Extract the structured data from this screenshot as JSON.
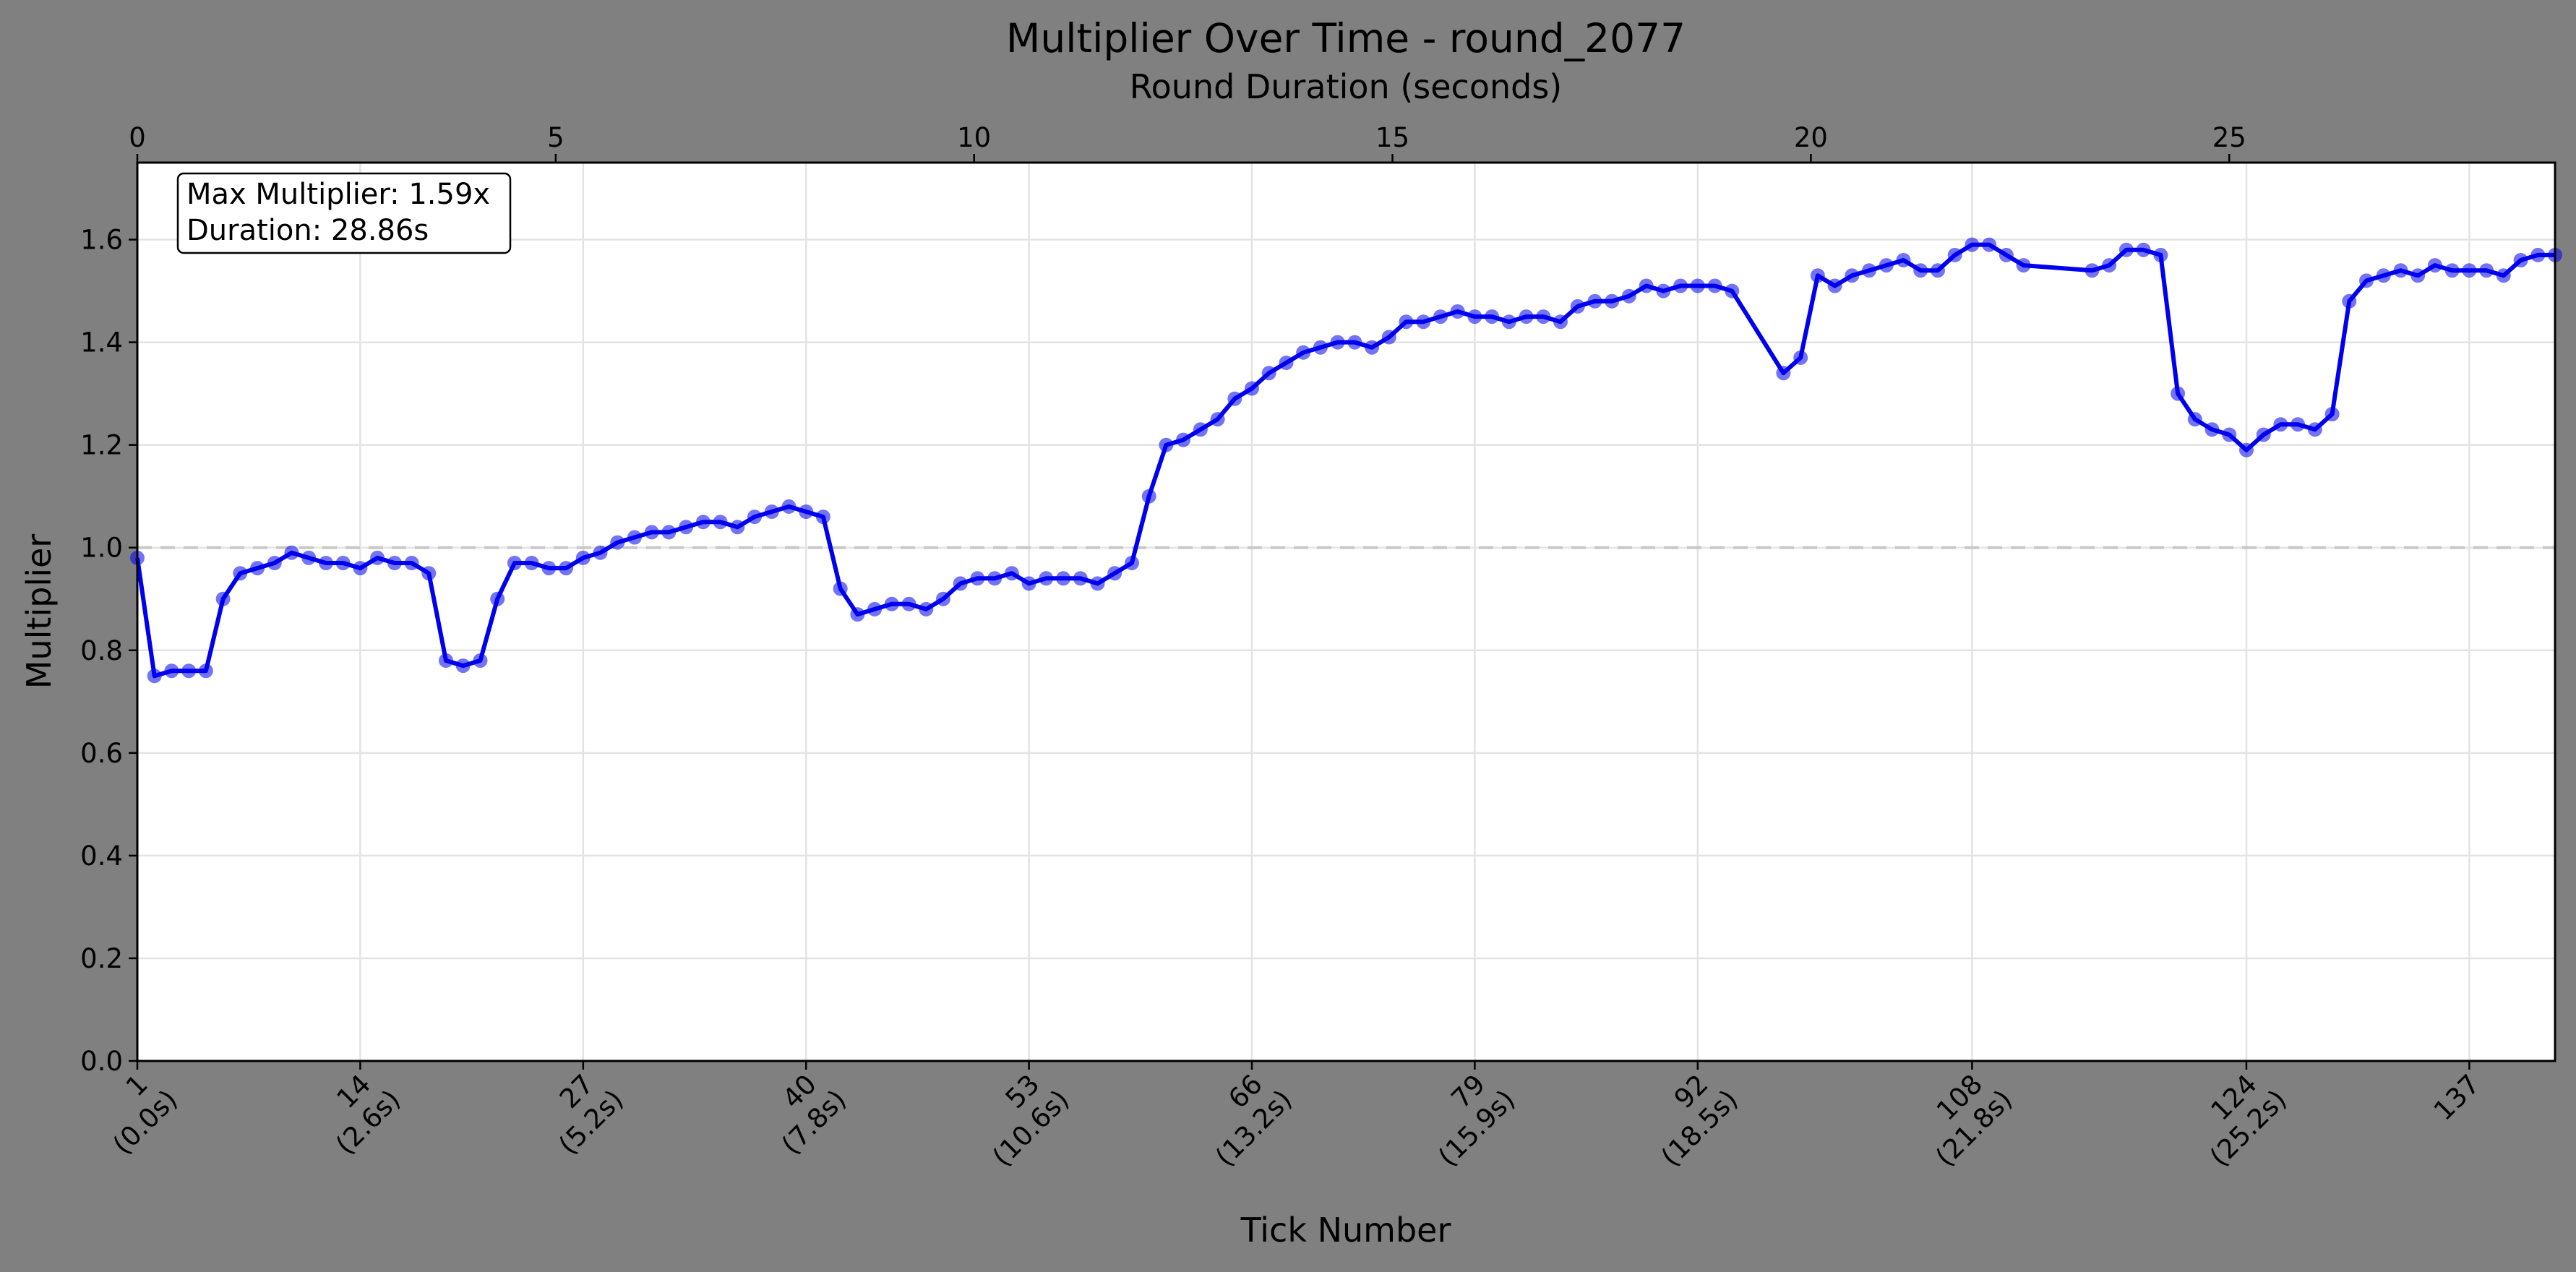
{
  "chart_data": {
    "type": "line",
    "title": "Multiplier Over Time - round_2077",
    "xlabel": "Tick Number",
    "ylabel": "Multiplier",
    "top_xlabel": "Round Duration (seconds)",
    "grid": true,
    "xlim": [
      1,
      142
    ],
    "ylim": [
      0,
      1.75
    ],
    "y_ticks": [
      "0.0",
      "0.2",
      "0.4",
      "0.6",
      "0.8",
      "1.0",
      "1.2",
      "1.4",
      "1.6"
    ],
    "y_tick_values": [
      0,
      0.2,
      0.4,
      0.6,
      0.8,
      1.0,
      1.2,
      1.4,
      1.6
    ],
    "x_ticks": [
      {
        "tick": 1,
        "label": "1",
        "sub": "(0.0s)"
      },
      {
        "tick": 14,
        "label": "14",
        "sub": "(2.6s)"
      },
      {
        "tick": 27,
        "label": "27",
        "sub": "(5.2s)"
      },
      {
        "tick": 40,
        "label": "40",
        "sub": "(7.8s)"
      },
      {
        "tick": 53,
        "label": "53",
        "sub": "(10.6s)"
      },
      {
        "tick": 66,
        "label": "66",
        "sub": "(13.2s)"
      },
      {
        "tick": 79,
        "label": "79",
        "sub": "(15.9s)"
      },
      {
        "tick": 92,
        "label": "92",
        "sub": "(18.5s)"
      },
      {
        "tick": 108,
        "label": "108",
        "sub": "(21.8s)"
      },
      {
        "tick": 124,
        "label": "124",
        "sub": "(25.2s)"
      },
      {
        "tick": 137,
        "label": "137",
        "sub": ""
      }
    ],
    "top_axis": {
      "ticks": [
        "0",
        "5",
        "10",
        "15",
        "20",
        "25"
      ],
      "tick_ticks": [
        1,
        25.4,
        49.8,
        74.2,
        98.6,
        123.0
      ]
    },
    "reference_line": {
      "y": 1.0,
      "style": "dashed",
      "color": "#c8c8c8"
    },
    "annotation": {
      "lines": [
        "Max Multiplier: 1.59x",
        "Duration: 28.86s"
      ],
      "placement": "top-left"
    },
    "series": [
      {
        "color": "#0000ee",
        "x": [
          1,
          2,
          3,
          4,
          5,
          6,
          7,
          8,
          9,
          10,
          11,
          12,
          13,
          14,
          15,
          16,
          17,
          18,
          19,
          20,
          21,
          22,
          23,
          24,
          25,
          26,
          27,
          28,
          29,
          30,
          31,
          32,
          33,
          34,
          35,
          36,
          37,
          38,
          39,
          40,
          41,
          42,
          43,
          44,
          45,
          46,
          47,
          48,
          49,
          50,
          51,
          52,
          53,
          54,
          55,
          56,
          57,
          58,
          59,
          60,
          61,
          62,
          63,
          64,
          65,
          66,
          67,
          68,
          69,
          70,
          71,
          72,
          73,
          74,
          75,
          76,
          77,
          78,
          79,
          80,
          81,
          82,
          83,
          84,
          85,
          86,
          87,
          88,
          89,
          90,
          91,
          92,
          93,
          94,
          97,
          98,
          99,
          100,
          101,
          102,
          103,
          104,
          105,
          106,
          107,
          108,
          109,
          110,
          111,
          115,
          116,
          117,
          118,
          119,
          120,
          121,
          122,
          123,
          124,
          125,
          126,
          127,
          128,
          129,
          130,
          131,
          132,
          133,
          134,
          135,
          136,
          137,
          138,
          139,
          140,
          141,
          142
        ],
        "y": [
          0.98,
          0.75,
          0.76,
          0.76,
          0.76,
          0.9,
          0.95,
          0.96,
          0.97,
          0.99,
          0.98,
          0.97,
          0.97,
          0.96,
          0.98,
          0.97,
          0.97,
          0.95,
          0.78,
          0.77,
          0.78,
          0.9,
          0.97,
          0.97,
          0.96,
          0.96,
          0.98,
          0.99,
          1.01,
          1.02,
          1.03,
          1.03,
          1.04,
          1.05,
          1.05,
          1.04,
          1.06,
          1.07,
          1.08,
          1.07,
          1.06,
          0.92,
          0.87,
          0.88,
          0.89,
          0.89,
          0.88,
          0.9,
          0.93,
          0.94,
          0.94,
          0.95,
          0.93,
          0.94,
          0.94,
          0.94,
          0.93,
          0.95,
          0.97,
          1.1,
          1.2,
          1.21,
          1.23,
          1.25,
          1.29,
          1.31,
          1.34,
          1.36,
          1.38,
          1.39,
          1.4,
          1.4,
          1.39,
          1.41,
          1.44,
          1.44,
          1.45,
          1.46,
          1.45,
          1.45,
          1.44,
          1.45,
          1.45,
          1.44,
          1.47,
          1.48,
          1.48,
          1.49,
          1.51,
          1.5,
          1.51,
          1.51,
          1.51,
          1.5,
          1.34,
          1.37,
          1.53,
          1.51,
          1.53,
          1.54,
          1.55,
          1.56,
          1.54,
          1.54,
          1.57,
          1.59,
          1.59,
          1.57,
          1.55,
          1.54,
          1.55,
          1.58,
          1.58,
          1.57,
          1.3,
          1.25,
          1.23,
          1.22,
          1.19,
          1.22,
          1.24,
          1.24,
          1.23,
          1.26,
          1.48,
          1.52,
          1.53,
          1.54,
          1.53,
          1.55,
          1.54,
          1.54,
          1.54,
          1.53,
          1.56,
          1.57,
          1.57
        ]
      }
    ]
  }
}
